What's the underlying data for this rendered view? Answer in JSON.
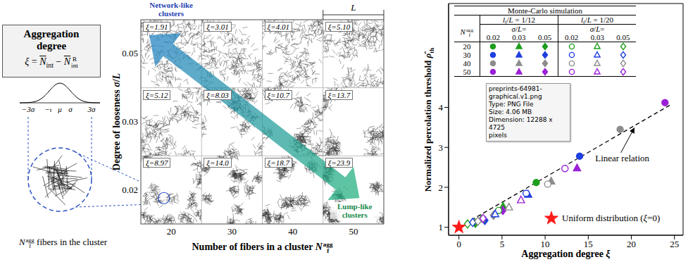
{
  "aggregation_box": {
    "title": "Aggregation degree",
    "formula": [
      {
        "i": "ξ"
      },
      " = ",
      {
        "over": "N"
      },
      {
        "sub": "int"
      },
      " − ",
      {
        "over": "N"
      },
      {
        "subsup": [
          "",
          "int",
          "R"
        ]
      }
    ]
  },
  "gaussian_labels": [
    "−3σ",
    "−σ",
    "μ",
    "σ",
    "3σ"
  ],
  "cluster_caption": [
    {
      "subsup": [
        "N",
        "f",
        "agg"
      ]
    },
    " fibers in the cluster"
  ],
  "cluster_grid": {
    "network_label": "Network-like clusters",
    "lump_label": "Lump-like clusters",
    "length_label": "L",
    "x_label": [
      "Number of fibers in a cluster ",
      {
        "subsup": [
          "N",
          "f",
          "agg"
        ]
      }
    ],
    "y_label": [
      "Degree of looseness ",
      {
        "i": "σ"
      },
      "/",
      {
        "i": "L"
      }
    ],
    "x_categories": [
      20,
      30,
      40,
      50
    ],
    "y_categories": [
      0.05,
      0.03,
      0.02
    ],
    "xi_prefix": "ξ=",
    "xi": [
      [
        "1.91",
        "3.01",
        "4.01",
        "5.10"
      ],
      [
        "5.12",
        "8.03",
        "10.7",
        "13.7"
      ],
      [
        "8.97",
        "14.0",
        "18.7",
        "23.9"
      ]
    ]
  },
  "chart_data": {
    "type": "scatter",
    "x_label": [
      "Aggregation degree ",
      {
        "i": "ξ"
      }
    ],
    "y_label": [
      "Normalized percolation threshold ",
      {
        "i": "ρ̂"
      },
      {
        "sub": "th"
      }
    ],
    "xlim": [
      -1.2,
      26
    ],
    "xticks": [
      0,
      5,
      10,
      15,
      20,
      25
    ],
    "ylim": [
      0.8,
      6.6
    ],
    "yticks": [
      1,
      2,
      3,
      4
    ],
    "series": [
      {
        "lf_L": "1/12",
        "n_agg": 20,
        "sigma_L": 0.02,
        "color": "#1e9e1e",
        "marker": "circle",
        "x": [
          8.97
        ],
        "y": [
          2.12
        ]
      },
      {
        "lf_L": "1/12",
        "n_agg": 20,
        "sigma_L": 0.03,
        "color": "#1e9e1e",
        "marker": "triangle",
        "x": [
          5.12
        ],
        "y": [
          1.52
        ]
      },
      {
        "lf_L": "1/12",
        "n_agg": 20,
        "sigma_L": 0.05,
        "color": "#1e9e1e",
        "marker": "diamond",
        "x": [
          1.91
        ],
        "y": [
          1.1
        ]
      },
      {
        "lf_L": "1/12",
        "n_agg": 30,
        "sigma_L": 0.02,
        "color": "#1f3fe0",
        "marker": "circle",
        "x": [
          14.0
        ],
        "y": [
          2.78
        ]
      },
      {
        "lf_L": "1/12",
        "n_agg": 30,
        "sigma_L": 0.03,
        "color": "#1f3fe0",
        "marker": "triangle",
        "x": [
          8.03
        ],
        "y": [
          1.82
        ]
      },
      {
        "lf_L": "1/12",
        "n_agg": 30,
        "sigma_L": 0.05,
        "color": "#1f3fe0",
        "marker": "diamond",
        "x": [
          3.01
        ],
        "y": [
          1.17
        ]
      },
      {
        "lf_L": "1/12",
        "n_agg": 40,
        "sigma_L": 0.02,
        "color": "#8c8c8c",
        "marker": "circle",
        "x": [
          18.7
        ],
        "y": [
          3.45
        ]
      },
      {
        "lf_L": "1/12",
        "n_agg": 40,
        "sigma_L": 0.03,
        "color": "#8c8c8c",
        "marker": "triangle",
        "x": [
          10.7
        ],
        "y": [
          2.15
        ]
      },
      {
        "lf_L": "1/12",
        "n_agg": 40,
        "sigma_L": 0.05,
        "color": "#8c8c8c",
        "marker": "diamond",
        "x": [
          4.01
        ],
        "y": [
          1.3
        ]
      },
      {
        "lf_L": "1/12",
        "n_agg": 50,
        "sigma_L": 0.02,
        "color": "#9a20d6",
        "marker": "circle",
        "x": [
          23.9
        ],
        "y": [
          4.12
        ]
      },
      {
        "lf_L": "1/12",
        "n_agg": 50,
        "sigma_L": 0.03,
        "color": "#9a20d6",
        "marker": "triangle",
        "x": [
          13.7
        ],
        "y": [
          2.48
        ]
      },
      {
        "lf_L": "1/12",
        "n_agg": 50,
        "sigma_L": 0.05,
        "color": "#9a20d6",
        "marker": "diamond",
        "x": [
          5.1
        ],
        "y": [
          1.42
        ]
      },
      {
        "lf_L": "1/20",
        "n_agg": 20,
        "sigma_L": 0.02,
        "color": "#1e9e1e",
        "marker": "circle_open",
        "x": [
          4.6
        ],
        "y": [
          1.42
        ]
      },
      {
        "lf_L": "1/20",
        "n_agg": 20,
        "sigma_L": 0.03,
        "color": "#1e9e1e",
        "marker": "triangle_open",
        "x": [
          2.6
        ],
        "y": [
          1.2
        ]
      },
      {
        "lf_L": "1/20",
        "n_agg": 20,
        "sigma_L": 0.05,
        "color": "#1e9e1e",
        "marker": "diamond_open",
        "x": [
          1.0
        ],
        "y": [
          1.08
        ]
      },
      {
        "lf_L": "1/20",
        "n_agg": 30,
        "sigma_L": 0.02,
        "color": "#1f3fe0",
        "marker": "circle_open",
        "x": [
          7.8
        ],
        "y": [
          1.85
        ]
      },
      {
        "lf_L": "1/20",
        "n_agg": 30,
        "sigma_L": 0.03,
        "color": "#1f3fe0",
        "marker": "triangle_open",
        "x": [
          4.2
        ],
        "y": [
          1.33
        ]
      },
      {
        "lf_L": "1/20",
        "n_agg": 30,
        "sigma_L": 0.05,
        "color": "#1f3fe0",
        "marker": "diamond_open",
        "x": [
          1.6
        ],
        "y": [
          1.12
        ]
      },
      {
        "lf_L": "1/20",
        "n_agg": 40,
        "sigma_L": 0.02,
        "color": "#8c8c8c",
        "marker": "circle_open",
        "x": [
          10.3
        ],
        "y": [
          2.08
        ]
      },
      {
        "lf_L": "1/20",
        "n_agg": 40,
        "sigma_L": 0.03,
        "color": "#8c8c8c",
        "marker": "triangle_open",
        "x": [
          5.8
        ],
        "y": [
          1.5
        ]
      },
      {
        "lf_L": "1/20",
        "n_agg": 40,
        "sigma_L": 0.05,
        "color": "#8c8c8c",
        "marker": "diamond_open",
        "x": [
          2.2
        ],
        "y": [
          1.15
        ]
      },
      {
        "lf_L": "1/20",
        "n_agg": 50,
        "sigma_L": 0.02,
        "color": "#9a20d6",
        "marker": "circle_open",
        "x": [
          12.3
        ],
        "y": [
          2.47
        ]
      },
      {
        "lf_L": "1/20",
        "n_agg": 50,
        "sigma_L": 0.03,
        "color": "#9a20d6",
        "marker": "triangle_open",
        "x": [
          7.2
        ],
        "y": [
          1.68
        ]
      },
      {
        "lf_L": "1/20",
        "n_agg": 50,
        "sigma_L": 0.05,
        "color": "#9a20d6",
        "marker": "diamond_open",
        "x": [
          2.8
        ],
        "y": [
          1.22
        ]
      }
    ],
    "uniform": {
      "name": [
        "Uniform distribution (",
        {
          "i": "ξ"
        },
        "=0)"
      ],
      "color": "#ff1a1a",
      "marker": "star",
      "x": [
        0
      ],
      "y": [
        1
      ]
    },
    "line": {
      "label": "Linear relation",
      "x": [
        0,
        24.5
      ],
      "y": [
        1,
        4.06
      ],
      "line_style": "dashed",
      "color": "#000000"
    },
    "legend_table": {
      "title": "Monte-Carlo simulation",
      "row_header": [
        {
          "subsup": [
            "N",
            "f",
            "agg"
          ]
        }
      ],
      "group_label_prefix": [
        {
          "i": "l"
        },
        {
          "sub": "f"
        },
        "/",
        {
          "i": "L"
        },
        " = "
      ],
      "groups": [
        "1/12",
        "1/20"
      ],
      "sigma_header": [
        {
          "i": "σ"
        },
        "/",
        {
          "i": "L"
        },
        "="
      ]
    }
  },
  "file_tooltip": [
    "preprints-64981-",
    "graphical.v1.png",
    "Type: PNG File",
    "Size: 4.06 MB",
    "Dimension: 12288 x 4725",
    "pixels"
  ]
}
